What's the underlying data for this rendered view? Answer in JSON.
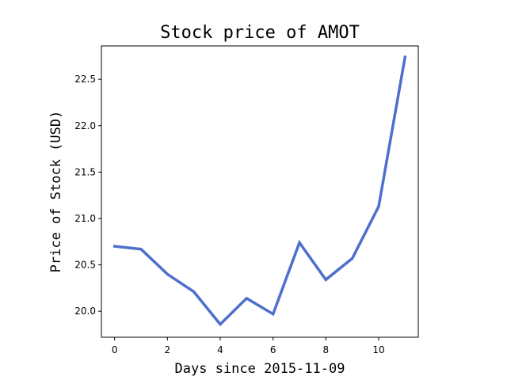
{
  "chart_data": {
    "type": "line",
    "title": "Stock price of AMOT",
    "xlabel": "Days since 2015-11-09",
    "ylabel": "Price of Stock (USD)",
    "xlim": [
      -0.5,
      11.5
    ],
    "ylim": [
      19.72,
      22.86
    ],
    "grid": false,
    "x_ticks": [
      0,
      2,
      4,
      6,
      8,
      10
    ],
    "x_tick_labels": [
      "0",
      "2",
      "4",
      "6",
      "8",
      "10"
    ],
    "y_ticks": [
      20.0,
      20.5,
      21.0,
      21.5,
      22.0,
      22.5
    ],
    "y_tick_labels": [
      "20.0",
      "20.5",
      "21.0",
      "21.5",
      "22.0",
      "22.5"
    ],
    "series": [
      {
        "color": "#4f6fcd",
        "x": [
          0,
          1,
          2,
          3,
          4,
          5,
          6,
          7,
          8,
          9,
          10,
          11
        ],
        "y": [
          20.7,
          20.67,
          20.4,
          20.21,
          19.86,
          20.14,
          19.97,
          20.74,
          20.34,
          20.57,
          21.13,
          22.74
        ]
      }
    ]
  }
}
